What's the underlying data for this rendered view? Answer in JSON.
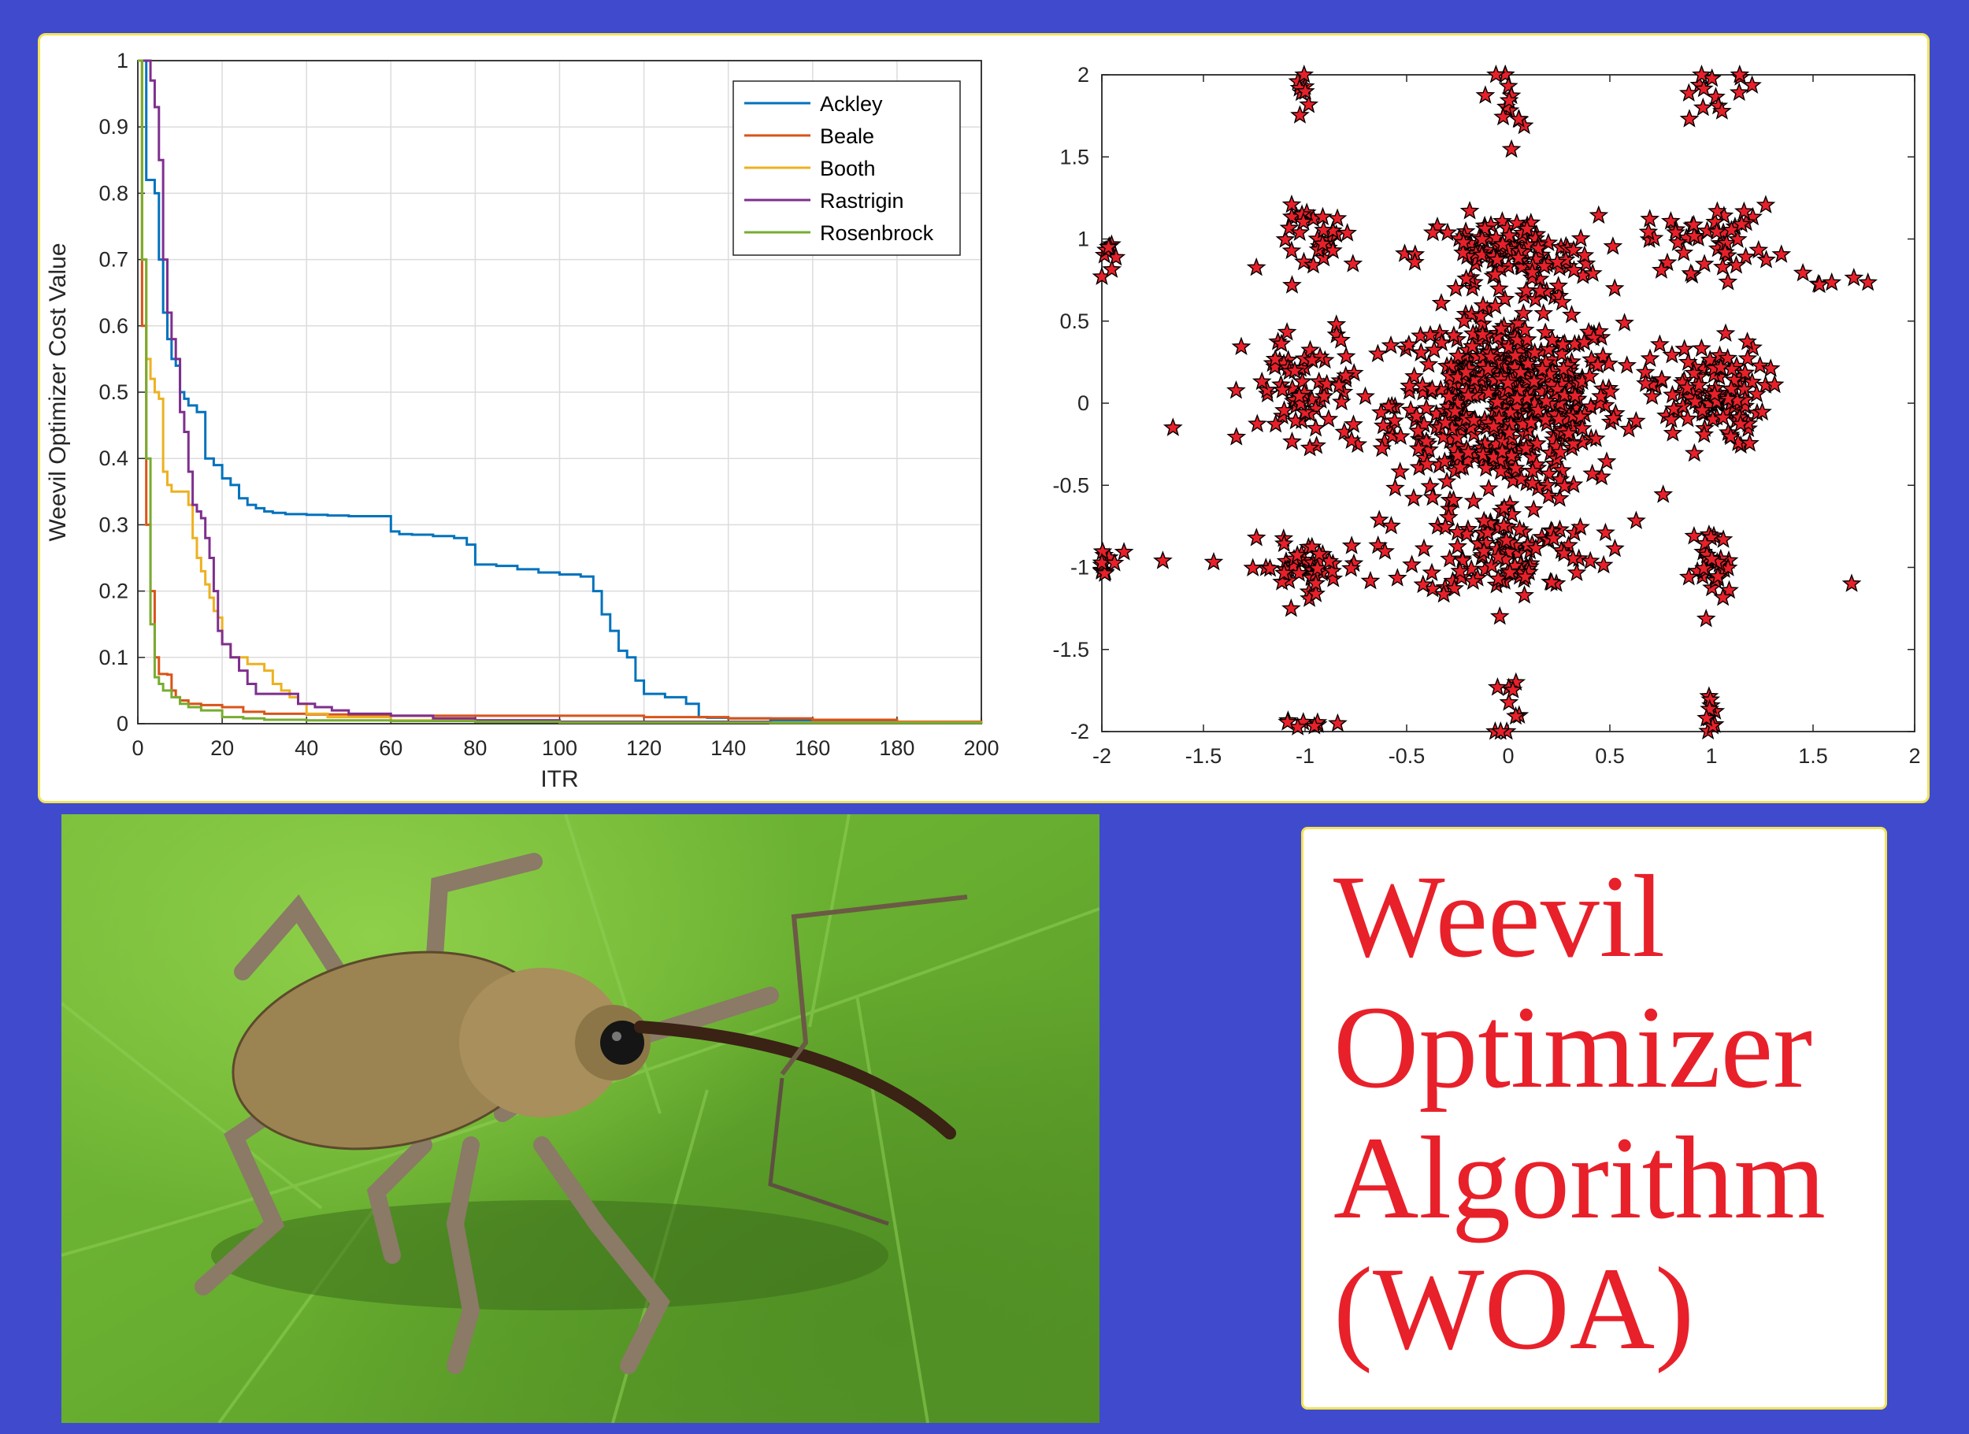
{
  "chart_data": [
    {
      "type": "line",
      "xlabel": "ITR",
      "ylabel": "Weevil Optimizer Cost Value",
      "xlim": [
        0,
        200
      ],
      "ylim": [
        0,
        1
      ],
      "xticks": [
        "0",
        "20",
        "40",
        "60",
        "80",
        "100",
        "120",
        "140",
        "160",
        "180",
        "200"
      ],
      "yticks": [
        "0",
        "0.1",
        "0.2",
        "0.3",
        "0.4",
        "0.5",
        "0.6",
        "0.7",
        "0.8",
        "0.9",
        "1"
      ],
      "grid": true,
      "legend_position": "top-right",
      "series": [
        {
          "name": "Ackley",
          "color": "#0072bd",
          "x": [
            0,
            2,
            4,
            5,
            6,
            7,
            8,
            9,
            10,
            11,
            12,
            14,
            16,
            18,
            20,
            22,
            24,
            26,
            28,
            30,
            32,
            35,
            40,
            45,
            50,
            55,
            60,
            62,
            65,
            70,
            75,
            78,
            80,
            85,
            90,
            95,
            100,
            105,
            108,
            110,
            112,
            114,
            116,
            118,
            120,
            125,
            130,
            133,
            135,
            140,
            150,
            160,
            170,
            180,
            190,
            200
          ],
          "y": [
            1,
            0.82,
            0.8,
            0.7,
            0.62,
            0.58,
            0.55,
            0.54,
            0.5,
            0.49,
            0.48,
            0.47,
            0.4,
            0.39,
            0.37,
            0.36,
            0.34,
            0.33,
            0.325,
            0.32,
            0.318,
            0.316,
            0.315,
            0.314,
            0.313,
            0.313,
            0.29,
            0.286,
            0.285,
            0.283,
            0.28,
            0.27,
            0.24,
            0.238,
            0.233,
            0.228,
            0.225,
            0.222,
            0.2,
            0.165,
            0.14,
            0.11,
            0.1,
            0.065,
            0.045,
            0.04,
            0.03,
            0.01,
            0.009,
            0.008,
            0.005,
            0.004,
            0.003,
            0.002,
            0.001,
            0.001
          ]
        },
        {
          "name": "Beale",
          "color": "#d95319",
          "x": [
            0,
            1,
            2,
            3,
            4,
            5,
            6,
            7,
            8,
            9,
            10,
            12,
            15,
            20,
            25,
            30,
            40,
            50,
            60,
            80,
            100,
            120,
            140,
            160,
            180,
            200
          ],
          "y": [
            1,
            0.6,
            0.3,
            0.2,
            0.1,
            0.075,
            0.075,
            0.074,
            0.05,
            0.04,
            0.035,
            0.03,
            0.028,
            0.025,
            0.018,
            0.015,
            0.014,
            0.013,
            0.012,
            0.012,
            0.012,
            0.01,
            0.008,
            0.006,
            0.003,
            0.002
          ]
        },
        {
          "name": "Booth",
          "color": "#edb120",
          "x": [
            0,
            1,
            2,
            3,
            4,
            5,
            6,
            7,
            8,
            9,
            10,
            11,
            12,
            13,
            14,
            15,
            16,
            17,
            18,
            19,
            20,
            22,
            24,
            26,
            28,
            30,
            32,
            34,
            36,
            38,
            40,
            45,
            60,
            100,
            200
          ],
          "y": [
            1,
            0.7,
            0.55,
            0.52,
            0.5,
            0.49,
            0.38,
            0.36,
            0.35,
            0.35,
            0.35,
            0.35,
            0.33,
            0.28,
            0.25,
            0.23,
            0.21,
            0.19,
            0.17,
            0.16,
            0.12,
            0.1,
            0.1,
            0.09,
            0.09,
            0.08,
            0.06,
            0.05,
            0.04,
            0.03,
            0.015,
            0.01,
            0.005,
            0.002,
            0
          ]
        },
        {
          "name": "Rastrigin",
          "color": "#7e2f8e",
          "x": [
            0,
            2,
            3,
            4,
            5,
            6,
            7,
            8,
            9,
            10,
            11,
            12,
            13,
            14,
            15,
            16,
            17,
            18,
            19,
            20,
            22,
            24,
            26,
            28,
            30,
            34,
            38,
            42,
            46,
            50,
            60,
            70,
            80,
            100,
            150,
            200
          ],
          "y": [
            1,
            1,
            0.97,
            0.93,
            0.85,
            0.7,
            0.62,
            0.58,
            0.55,
            0.47,
            0.44,
            0.38,
            0.33,
            0.32,
            0.31,
            0.28,
            0.25,
            0.2,
            0.14,
            0.12,
            0.1,
            0.08,
            0.06,
            0.045,
            0.045,
            0.045,
            0.03,
            0.025,
            0.02,
            0.015,
            0.012,
            0.008,
            0.005,
            0.003,
            0.001,
            0
          ]
        },
        {
          "name": "Rosenbrock",
          "color": "#77ac30",
          "x": [
            0,
            1,
            2,
            3,
            4,
            5,
            6,
            8,
            10,
            12,
            15,
            20,
            25,
            30,
            40,
            60,
            80,
            100,
            150,
            200
          ],
          "y": [
            1,
            0.7,
            0.4,
            0.15,
            0.07,
            0.06,
            0.05,
            0.04,
            0.03,
            0.025,
            0.02,
            0.01,
            0.008,
            0.006,
            0.005,
            0.004,
            0.003,
            0.002,
            0.001,
            0
          ]
        }
      ]
    },
    {
      "type": "scatter",
      "xlim": [
        -2,
        2
      ],
      "ylim": [
        -2,
        2
      ],
      "xticks": [
        "-2",
        "-1.5",
        "-1",
        "-0.5",
        "0",
        "0.5",
        "1",
        "1.5",
        "2"
      ],
      "yticks": [
        "-2",
        "-1.5",
        "-1",
        "-0.5",
        "0",
        "0.5",
        "1",
        "1.5",
        "2"
      ],
      "grid": false,
      "marker": "star",
      "marker_fill": "#e8202a",
      "marker_edge": "#000000",
      "clusters": [
        {
          "cx": 0,
          "cy": 0,
          "n": 520,
          "sx": 0.28,
          "sy": 0.28
        },
        {
          "cx": 0,
          "cy": 0.9,
          "n": 110,
          "sx": 0.22,
          "sy": 0.12
        },
        {
          "cx": 0,
          "cy": -0.9,
          "n": 110,
          "sx": 0.22,
          "sy": 0.14
        },
        {
          "cx": 0.98,
          "cy": 0.05,
          "n": 110,
          "sx": 0.14,
          "sy": 0.16
        },
        {
          "cx": -0.98,
          "cy": 0.05,
          "n": 70,
          "sx": 0.16,
          "sy": 0.2
        },
        {
          "cx": 1.0,
          "cy": 1.0,
          "n": 45,
          "sx": 0.16,
          "sy": 0.1
        },
        {
          "cx": -1.0,
          "cy": -1.0,
          "n": 50,
          "sx": 0.15,
          "sy": 0.08
        },
        {
          "cx": 1.0,
          "cy": -1.0,
          "n": 30,
          "sx": 0.05,
          "sy": 0.12
        },
        {
          "cx": -0.9,
          "cy": 1.0,
          "n": 30,
          "sx": 0.12,
          "sy": 0.1
        },
        {
          "cx": 0,
          "cy": 1.85,
          "n": 14,
          "sx": 0.03,
          "sy": 0.15
        },
        {
          "cx": 0,
          "cy": -1.85,
          "n": 10,
          "sx": 0.03,
          "sy": 0.12
        },
        {
          "cx": 1.0,
          "cy": 1.9,
          "n": 14,
          "sx": 0.12,
          "sy": 0.08
        },
        {
          "cx": 1.0,
          "cy": -1.9,
          "n": 10,
          "sx": 0.02,
          "sy": 0.06
        },
        {
          "cx": -1.0,
          "cy": 1.9,
          "n": 8,
          "sx": 0.02,
          "sy": 0.05
        },
        {
          "cx": -1.0,
          "cy": -1.95,
          "n": 8,
          "sx": 0.08,
          "sy": 0.02
        },
        {
          "cx": -1.97,
          "cy": 0.9,
          "n": 8,
          "sx": 0.03,
          "sy": 0.06
        },
        {
          "cx": -1.97,
          "cy": -1.0,
          "n": 12,
          "sx": 0.05,
          "sy": 0.07
        },
        {
          "cx": 1.55,
          "cy": 0.75,
          "n": 6,
          "sx": 0.08,
          "sy": 0.05
        },
        {
          "cx": 1.69,
          "cy": -1.1,
          "n": 1,
          "sx": 0,
          "sy": 0
        },
        {
          "cx": -1.65,
          "cy": -0.15,
          "n": 1,
          "sx": 0,
          "sy": 0
        },
        {
          "cx": -1.7,
          "cy": -0.96,
          "n": 1,
          "sx": 0,
          "sy": 0
        }
      ]
    }
  ],
  "title_box": {
    "lines": [
      "Weevil",
      "Optimizer",
      "Algorithm",
      "(WOA)"
    ],
    "color": "#e8202a"
  },
  "photo": {
    "leaf_color": "#6fb535",
    "beetle_color": "#9c8452"
  }
}
